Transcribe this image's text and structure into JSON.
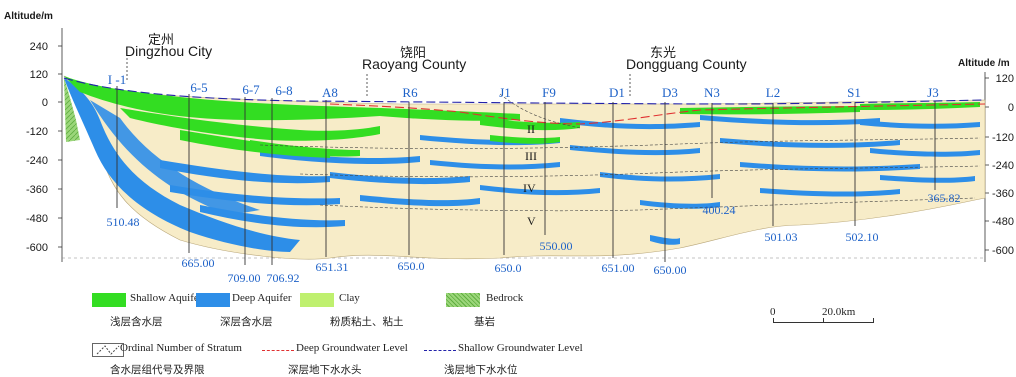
{
  "axis": {
    "left_title": "Altitude/m",
    "right_title": "Altitude /m",
    "left_ticks": [
      "240",
      "120",
      "0",
      "-120",
      "-240",
      "-360",
      "-480",
      "-600"
    ],
    "right_ticks": [
      "120",
      "0",
      "-120",
      "-240",
      "-360",
      "-480",
      "-600"
    ]
  },
  "places": {
    "dingzhou_cn": "定州",
    "dingzhou_en": "Dingzhou City",
    "raoyang_cn": "饶阳",
    "raoyang_en": "Raoyang County",
    "dongguang_cn": "东光",
    "dongguang_en": "Dongguang County"
  },
  "wells": [
    {
      "name": "I -1",
      "depth": "510.48"
    },
    {
      "name": "6-5",
      "depth": "665.00"
    },
    {
      "name": "6-7",
      "depth": "709.00"
    },
    {
      "name": "6-8",
      "depth": "706.92"
    },
    {
      "name": "A8",
      "depth": "651.31"
    },
    {
      "name": "R6",
      "depth": "650.0"
    },
    {
      "name": "J1",
      "depth": "650.0"
    },
    {
      "name": "F9",
      "depth": "550.00"
    },
    {
      "name": "D1",
      "depth": "651.00"
    },
    {
      "name": "D3",
      "depth": "650.00"
    },
    {
      "name": "N3",
      "depth": "400.24"
    },
    {
      "name": "L2",
      "depth": "501.03"
    },
    {
      "name": "S1",
      "depth": "502.10"
    },
    {
      "name": "J3",
      "depth": "365.82"
    }
  ],
  "strata": [
    "II",
    "III",
    "IV",
    "V"
  ],
  "legend": {
    "shallow_en": "Shallow Aquifer",
    "shallow_cn": "浅层含水层",
    "deep_en": "Deep Aquifer",
    "deep_cn": "深层含水层",
    "clay_en": "Clay",
    "clay_cn": "粉质粘土、粘土",
    "bedrock_en": "Bedrock",
    "bedrock_cn": "基岩",
    "stratum_en": "Ordinal Number of Stratum",
    "stratum_cn": "含水层组代号及界限",
    "deep_level_en": "Deep Groundwater Level",
    "deep_level_cn": "深层地下水水头",
    "shallow_level_en": "Shallow Groundwater Level",
    "shallow_level_cn": "浅层地下水水位",
    "scale_zero": "0",
    "scale_km": "20.0km"
  },
  "colors": {
    "shallow_aquifer": "#33dd22",
    "deep_aquifer": "#2d8ee8",
    "clay": "#f7ecc8",
    "bedrock": "#8fd470",
    "deep_level_line": "#e03030",
    "shallow_level_line": "#2222aa"
  }
}
